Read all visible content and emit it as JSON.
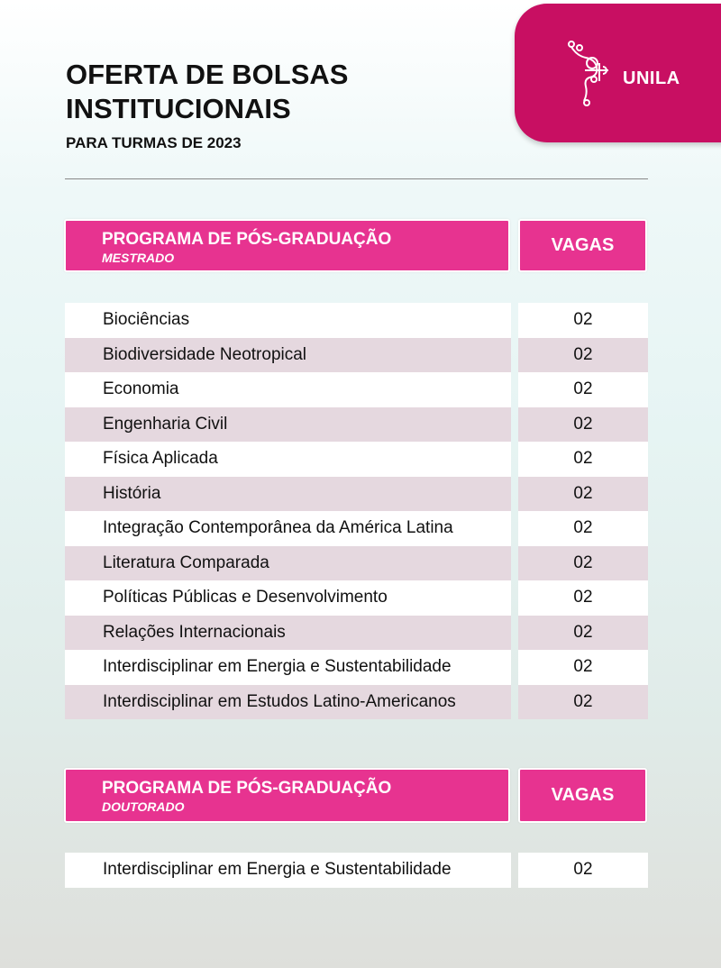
{
  "logo": {
    "text": "UNILA"
  },
  "title": [
    "OFERTA DE BOLSAS",
    "INSTITUCIONAIS"
  ],
  "subtitle": "PARA TURMAS DE 2023",
  "mestrado": {
    "header": "PROGRAMA DE PÓS-GRADUAÇÃO",
    "level": "MESTRADO",
    "vagas_label": "VAGAS",
    "rows": [
      {
        "name": "Biociências",
        "vagas": "02"
      },
      {
        "name": "Biodiversidade Neotropical",
        "vagas": "02"
      },
      {
        "name": "Economia",
        "vagas": "02"
      },
      {
        "name": "Engenharia Civil",
        "vagas": "02"
      },
      {
        "name": "Física Aplicada",
        "vagas": "02"
      },
      {
        "name": "História",
        "vagas": "02"
      },
      {
        "name": "Integração Contemporânea da América Latina",
        "vagas": "02"
      },
      {
        "name": "Literatura Comparada",
        "vagas": "02"
      },
      {
        "name": "Políticas Públicas e Desenvolvimento",
        "vagas": "02"
      },
      {
        "name": "Relações Internacionais",
        "vagas": "02"
      },
      {
        "name": "Interdisciplinar em Energia e Sustentabilidade",
        "vagas": "02"
      },
      {
        "name": "Interdisciplinar em Estudos Latino-Americanos",
        "vagas": "02"
      }
    ]
  },
  "doutorado": {
    "header": "PROGRAMA DE PÓS-GRADUAÇÃO",
    "level": "DOUTORADO",
    "vagas_label": "VAGAS",
    "rows": [
      {
        "name": "Interdisciplinar em Energia e Sustentabilidade",
        "vagas": "02"
      }
    ]
  },
  "colors": {
    "brand": "#c80f62",
    "header": "#e73390",
    "row_alt": "#e5d8df"
  }
}
